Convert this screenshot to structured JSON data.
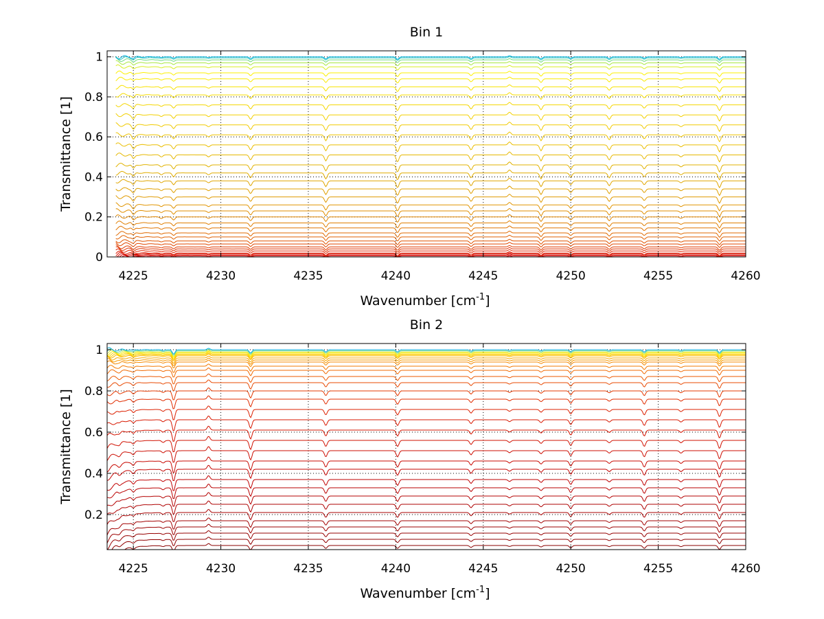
{
  "chart_data": [
    {
      "type": "line",
      "title": "Bin 1",
      "xlabel": "Wavenumber [cm",
      "xlabel_sup": "-1",
      "xlabel_suffix": "]",
      "ylabel": "Transmittance [1]",
      "xlim": [
        4223.5,
        4260
      ],
      "ylim": [
        0,
        1.03
      ],
      "xticks": [
        4225,
        4230,
        4235,
        4240,
        4245,
        4250,
        4255,
        4260
      ],
      "yticks": [
        0,
        0.2,
        0.4,
        0.6,
        0.8,
        1
      ],
      "ytick_labels": [
        "0",
        "0.2",
        "0.4",
        "0.6",
        "0.8",
        "1"
      ],
      "grid": true,
      "x_range": [
        4224,
        4260
      ],
      "series_levels": [
        0.0,
        0.005,
        0.01,
        0.015,
        0.02,
        0.03,
        0.04,
        0.05,
        0.065,
        0.08,
        0.1,
        0.12,
        0.145,
        0.17,
        0.2,
        0.23,
        0.26,
        0.3,
        0.34,
        0.38,
        0.42,
        0.46,
        0.51,
        0.56,
        0.61,
        0.66,
        0.71,
        0.76,
        0.81,
        0.85,
        0.89,
        0.92,
        0.95,
        0.97,
        0.985,
        0.995,
        1.0
      ],
      "series_colors": [
        "#cc0000",
        "#d00000",
        "#d40800",
        "#d81000",
        "#dc1800",
        "#e02400",
        "#e03000",
        "#e03c00",
        "#e04800",
        "#e05400",
        "#e06000",
        "#e06a00",
        "#e07400",
        "#e07e00",
        "#e08600",
        "#e08e00",
        "#e09400",
        "#e09a00",
        "#e0a000",
        "#e0a600",
        "#e0ac00",
        "#e0b200",
        "#e6b800",
        "#eabe00",
        "#eec400",
        "#f0ca00",
        "#f2d000",
        "#f4d600",
        "#f6dc00",
        "#f8e200",
        "#faea00",
        "#fcf000",
        "#d8ee20",
        "#a8e840",
        "#70d880",
        "#30c8c0",
        "#00b0e0"
      ],
      "absorption_lines": [
        {
          "x": 4225.0,
          "depth": 0.02
        },
        {
          "x": 4226.6,
          "depth": 0.01
        },
        {
          "x": 4227.3,
          "depth": 0.02
        },
        {
          "x": 4229.3,
          "depth": 0.01
        },
        {
          "x": 4231.7,
          "depth": 0.025
        },
        {
          "x": 4236.0,
          "depth": 0.03
        },
        {
          "x": 4240.1,
          "depth": 0.035
        },
        {
          "x": 4244.3,
          "depth": 0.025
        },
        {
          "x": 4246.5,
          "depth": -0.015
        },
        {
          "x": 4248.3,
          "depth": 0.03
        },
        {
          "x": 4250.0,
          "depth": 0.02
        },
        {
          "x": 4252.2,
          "depth": 0.025
        },
        {
          "x": 4254.2,
          "depth": 0.02
        },
        {
          "x": 4256.3,
          "depth": 0.01
        },
        {
          "x": 4258.5,
          "depth": 0.035
        }
      ]
    },
    {
      "type": "line",
      "title": "Bin 2",
      "xlabel": "Wavenumber [cm",
      "xlabel_sup": "-1",
      "xlabel_suffix": "]",
      "ylabel": "Transmittance [1]",
      "xlim": [
        4223.5,
        4260
      ],
      "ylim": [
        0.03,
        1.03
      ],
      "xticks": [
        4225,
        4230,
        4235,
        4240,
        4245,
        4250,
        4255,
        4260
      ],
      "yticks": [
        0.2,
        0.4,
        0.6,
        0.8,
        1
      ],
      "ytick_labels": [
        "0.2",
        "0.4",
        "0.6",
        "0.8",
        "1"
      ],
      "grid": true,
      "x_range": [
        4223.5,
        4260
      ],
      "series_levels": [
        0.05,
        0.08,
        0.11,
        0.14,
        0.17,
        0.21,
        0.25,
        0.29,
        0.33,
        0.37,
        0.42,
        0.46,
        0.51,
        0.56,
        0.61,
        0.66,
        0.71,
        0.76,
        0.8,
        0.84,
        0.87,
        0.9,
        0.92,
        0.94,
        0.95,
        0.96,
        0.97,
        0.975,
        0.98,
        0.985,
        0.99,
        0.995,
        1.0
      ],
      "series_colors": [
        "#8a0000",
        "#900000",
        "#960000",
        "#9c0000",
        "#a20000",
        "#a80000",
        "#ae0000",
        "#b40000",
        "#ba0000",
        "#c00000",
        "#c40400",
        "#c80800",
        "#cc0c00",
        "#d01000",
        "#d41400",
        "#d81800",
        "#dc2000",
        "#e02c00",
        "#e43800",
        "#e84800",
        "#ec5800",
        "#f06800",
        "#f27800",
        "#f48800",
        "#f69800",
        "#f8a800",
        "#fab800",
        "#fcc800",
        "#fcd800",
        "#fce800",
        "#d0e840",
        "#60d0a0",
        "#10b0e0"
      ],
      "absorption_lines": [
        {
          "x": 4224.2,
          "depth": 0.01
        },
        {
          "x": 4225.0,
          "depth": 0.015
        },
        {
          "x": 4226.7,
          "depth": 0.01
        },
        {
          "x": 4227.3,
          "depth": 0.06
        },
        {
          "x": 4229.3,
          "depth": -0.02
        },
        {
          "x": 4231.7,
          "depth": 0.045
        },
        {
          "x": 4236.0,
          "depth": 0.03
        },
        {
          "x": 4240.1,
          "depth": 0.03
        },
        {
          "x": 4244.3,
          "depth": 0.02
        },
        {
          "x": 4246.5,
          "depth": 0.01
        },
        {
          "x": 4248.3,
          "depth": 0.015
        },
        {
          "x": 4250.0,
          "depth": 0.025
        },
        {
          "x": 4252.2,
          "depth": 0.012
        },
        {
          "x": 4254.2,
          "depth": 0.03
        },
        {
          "x": 4256.3,
          "depth": 0.012
        },
        {
          "x": 4258.5,
          "depth": 0.04
        }
      ]
    }
  ]
}
